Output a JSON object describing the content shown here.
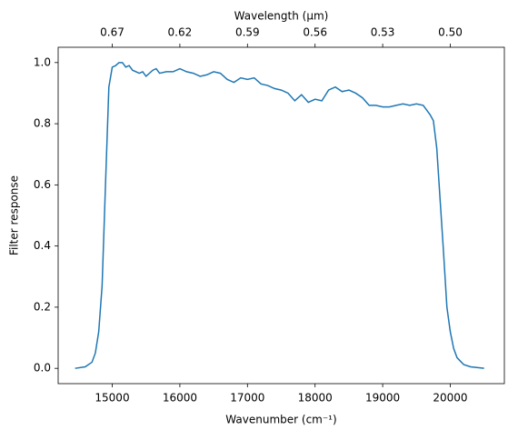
{
  "chart_data": {
    "type": "line",
    "xlabel": "Wavenumber (cm⁻¹)",
    "ylabel": "Filter response",
    "x2label": "Wavelength (μm)",
    "x": [
      14450,
      14600,
      14700,
      14750,
      14800,
      14850,
      14900,
      14950,
      15000,
      15050,
      15100,
      15150,
      15200,
      15250,
      15300,
      15400,
      15450,
      15500,
      15600,
      15650,
      15700,
      15800,
      15900,
      16000,
      16100,
      16200,
      16300,
      16400,
      16500,
      16600,
      16700,
      16800,
      16900,
      17000,
      17100,
      17200,
      17300,
      17400,
      17500,
      17600,
      17700,
      17800,
      17900,
      18000,
      18100,
      18200,
      18300,
      18400,
      18500,
      18600,
      18700,
      18800,
      18900,
      19000,
      19100,
      19200,
      19300,
      19400,
      19500,
      19600,
      19700,
      19750,
      19800,
      19850,
      19900,
      19950,
      20000,
      20050,
      20100,
      20200,
      20300,
      20500
    ],
    "series": [
      {
        "color": "#1f77b4",
        "values": [
          0.0,
          0.005,
          0.02,
          0.05,
          0.12,
          0.27,
          0.6,
          0.92,
          0.985,
          0.99,
          1.0,
          1.0,
          0.985,
          0.99,
          0.975,
          0.965,
          0.97,
          0.955,
          0.975,
          0.98,
          0.965,
          0.97,
          0.97,
          0.98,
          0.97,
          0.965,
          0.955,
          0.96,
          0.97,
          0.965,
          0.945,
          0.935,
          0.95,
          0.945,
          0.95,
          0.93,
          0.925,
          0.915,
          0.91,
          0.9,
          0.875,
          0.895,
          0.87,
          0.88,
          0.875,
          0.91,
          0.92,
          0.905,
          0.91,
          0.9,
          0.885,
          0.86,
          0.86,
          0.855,
          0.855,
          0.86,
          0.865,
          0.86,
          0.865,
          0.86,
          0.83,
          0.81,
          0.72,
          0.55,
          0.38,
          0.2,
          0.12,
          0.065,
          0.035,
          0.012,
          0.005,
          0.0
        ]
      }
    ],
    "xlim": [
      14200,
      20800
    ],
    "ylim": [
      -0.05,
      1.05
    ],
    "xticks": [
      15000,
      16000,
      17000,
      18000,
      19000,
      20000
    ],
    "yticks": [
      {
        "value": 0,
        "label": "0.0"
      },
      0.2,
      0.4,
      0.6,
      0.8,
      {
        "value": 1,
        "label": "1.0"
      }
    ],
    "x2ticks": [
      {
        "value": 15000,
        "label": "0.67"
      },
      {
        "value": 16000,
        "label": "0.62"
      },
      {
        "value": 17000,
        "label": "0.59"
      },
      {
        "value": 18000,
        "label": "0.56"
      },
      {
        "value": 19000,
        "label": "0.53"
      },
      {
        "value": 20000,
        "label": "0.50"
      }
    ]
  }
}
